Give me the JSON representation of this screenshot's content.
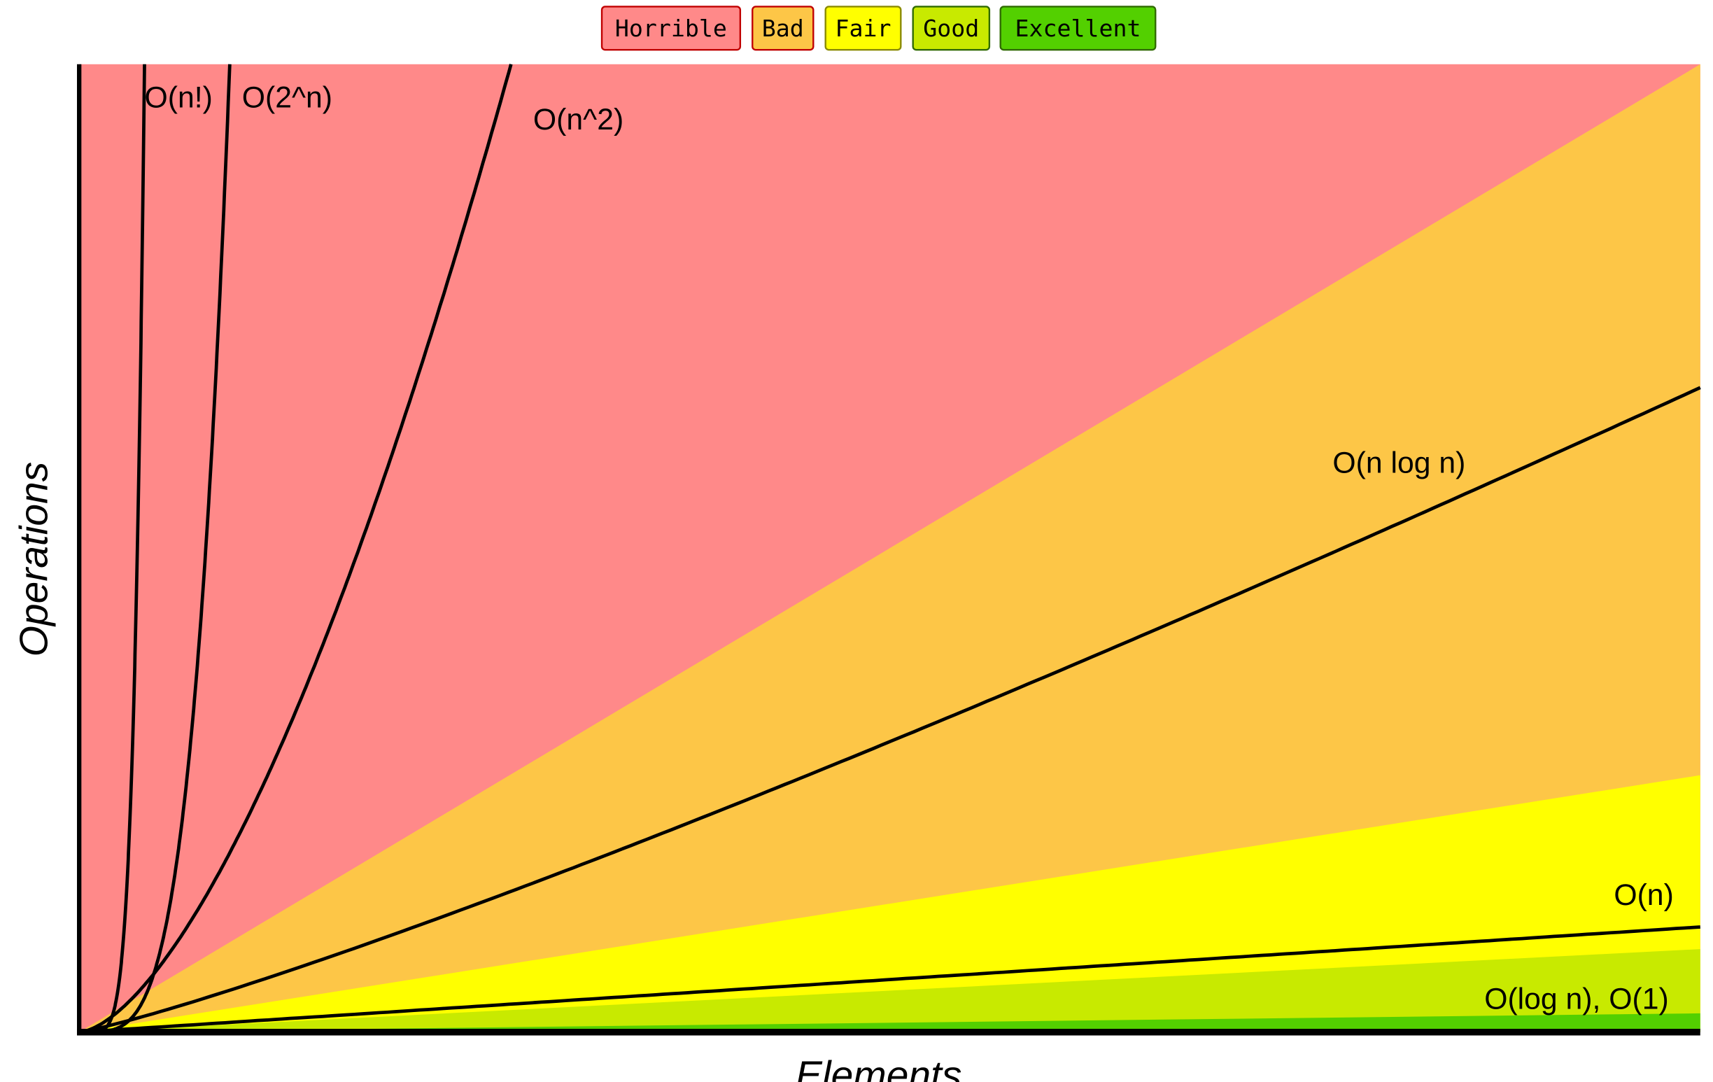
{
  "chart_data": {
    "type": "area",
    "xlabel": "Elements",
    "ylabel": "Operations",
    "grid": false,
    "legend_position": "top-center",
    "legend": [
      {
        "label": "Horrible",
        "color": "#ff8989",
        "border": "#c00000"
      },
      {
        "label": "Bad",
        "color": "#fdc647",
        "border": "#c00000"
      },
      {
        "label": "Fair",
        "color": "#ffff00",
        "border": "#8a8a00"
      },
      {
        "label": "Good",
        "color": "#c8ea00",
        "border": "#2f6a00"
      },
      {
        "label": "Excellent",
        "color": "#53d000",
        "border": "#2f6a00"
      }
    ],
    "series": [
      {
        "name": "O(n!)",
        "complexity": "factorial"
      },
      {
        "name": "O(2^n)",
        "complexity": "exponential"
      },
      {
        "name": "O(n^2)",
        "complexity": "quadratic"
      },
      {
        "name": "O(n log n)",
        "complexity": "linearithmic"
      },
      {
        "name": "O(n)",
        "complexity": "linear"
      },
      {
        "name": "O(log n), O(1)",
        "complexity": "logarithmic/constant"
      }
    ]
  }
}
